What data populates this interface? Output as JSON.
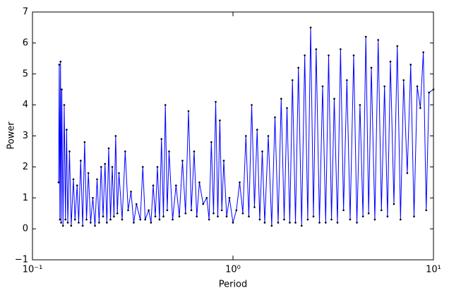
{
  "chart_data": {
    "type": "line",
    "x_label": "Period",
    "y_label": "Power",
    "xscale": "log",
    "xlim": [
      0.1,
      10
    ],
    "ylim": [
      -1,
      7
    ],
    "xticks": [
      {
        "value": 0.1,
        "label": "10⁻¹"
      },
      {
        "value": 1,
        "label": "10⁰"
      },
      {
        "value": 10,
        "label": "10¹"
      }
    ],
    "yticks": [
      {
        "value": -1,
        "label": "−1"
      },
      0,
      1,
      2,
      3,
      4,
      5,
      6,
      7
    ],
    "color": "#0000ff",
    "marker_color": "#000000",
    "x": [
      0.135,
      0.136,
      0.137,
      0.138,
      0.139,
      0.14,
      0.142,
      0.144,
      0.146,
      0.148,
      0.15,
      0.153,
      0.156,
      0.16,
      0.163,
      0.167,
      0.17,
      0.174,
      0.178,
      0.182,
      0.186,
      0.19,
      0.195,
      0.2,
      0.205,
      0.21,
      0.215,
      0.22,
      0.225,
      0.23,
      0.235,
      0.24,
      0.245,
      0.25,
      0.255,
      0.26,
      0.265,
      0.27,
      0.28,
      0.29,
      0.3,
      0.31,
      0.32,
      0.33,
      0.345,
      0.355,
      0.365,
      0.38,
      0.39,
      0.4,
      0.41,
      0.42,
      0.43,
      0.44,
      0.45,
      0.46,
      0.47,
      0.48,
      0.5,
      0.52,
      0.54,
      0.56,
      0.58,
      0.6,
      0.62,
      0.64,
      0.66,
      0.68,
      0.71,
      0.74,
      0.76,
      0.78,
      0.8,
      0.82,
      0.84,
      0.86,
      0.88,
      0.9,
      0.93,
      0.96,
      1.0,
      1.04,
      1.08,
      1.12,
      1.16,
      1.2,
      1.24,
      1.28,
      1.32,
      1.36,
      1.4,
      1.44,
      1.5,
      1.56,
      1.62,
      1.68,
      1.74,
      1.8,
      1.86,
      1.92,
      1.98,
      2.05,
      2.12,
      2.2,
      2.28,
      2.36,
      2.44,
      2.52,
      2.6,
      2.7,
      2.8,
      2.9,
      3.0,
      3.1,
      3.2,
      3.32,
      3.44,
      3.56,
      3.7,
      3.84,
      4.0,
      4.15,
      4.3,
      4.45,
      4.6,
      4.75,
      4.9,
      5.1,
      5.3,
      5.5,
      5.7,
      5.9,
      6.1,
      6.35,
      6.6,
      6.85,
      7.1,
      7.4,
      7.7,
      8.0,
      8.3,
      8.6,
      8.9,
      9.2,
      9.5,
      10.0
    ],
    "values": [
      1.5,
      5.3,
      0.3,
      5.4,
      0.2,
      4.5,
      0.1,
      4.0,
      0.3,
      3.2,
      0.2,
      2.5,
      0.1,
      1.6,
      0.3,
      1.4,
      0.2,
      2.2,
      0.1,
      2.8,
      0.3,
      1.8,
      0.2,
      1.0,
      0.1,
      1.6,
      0.2,
      2.0,
      0.4,
      2.1,
      0.2,
      2.6,
      0.3,
      2.0,
      0.4,
      3.0,
      0.5,
      1.8,
      0.3,
      2.5,
      0.6,
      1.2,
      0.2,
      0.8,
      0.3,
      2.0,
      0.3,
      0.6,
      0.2,
      1.4,
      0.4,
      2.0,
      0.3,
      2.9,
      0.4,
      4.0,
      0.6,
      2.5,
      0.3,
      1.4,
      0.4,
      2.2,
      0.5,
      3.8,
      0.6,
      2.5,
      0.4,
      1.5,
      0.8,
      1.0,
      0.3,
      2.8,
      0.5,
      4.1,
      0.4,
      3.5,
      0.6,
      2.2,
      0.4,
      1.0,
      0.2,
      0.6,
      1.5,
      0.5,
      3.0,
      0.4,
      4.0,
      0.7,
      3.2,
      0.3,
      2.5,
      0.2,
      3.0,
      0.1,
      3.6,
      0.2,
      4.2,
      0.3,
      3.9,
      0.2,
      4.8,
      0.2,
      5.2,
      0.1,
      5.6,
      0.3,
      6.5,
      0.4,
      5.8,
      0.2,
      4.6,
      0.2,
      5.6,
      0.3,
      4.2,
      0.2,
      5.8,
      0.6,
      4.8,
      0.3,
      5.6,
      0.2,
      4.0,
      0.4,
      6.2,
      0.5,
      5.2,
      0.3,
      6.1,
      0.6,
      4.6,
      0.4,
      5.4,
      0.8,
      5.9,
      0.3,
      4.8,
      1.8,
      5.3,
      0.4,
      4.6,
      3.9,
      5.7,
      0.6,
      4.4,
      4.5
    ]
  }
}
